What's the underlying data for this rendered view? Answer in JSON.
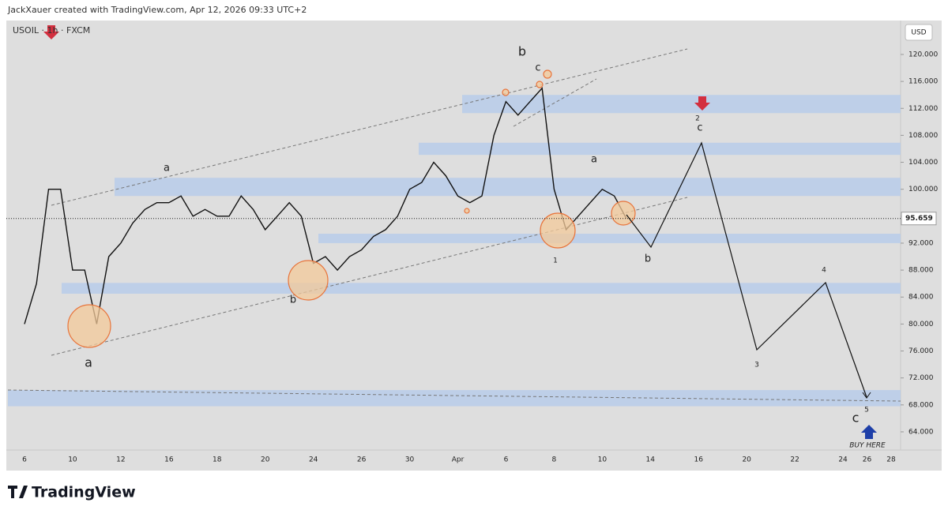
{
  "header": {
    "attribution": "JackXauer created with TradingView.com, Apr 12, 2026 09:33 UTC+2",
    "symbol": "USOIL · 1h · FXCM",
    "currency": "USD"
  },
  "chart_data": {
    "type": "line",
    "color": "#111111",
    "x": [
      "6",
      null,
      null,
      null,
      "10",
      null,
      null,
      null,
      "12",
      null,
      null,
      null,
      "16",
      null,
      null,
      null,
      "18",
      null,
      null,
      null,
      "20",
      null,
      null,
      null,
      "24",
      null,
      null,
      null,
      "26",
      null,
      null,
      null,
      "30",
      null,
      null,
      null,
      "Apr",
      null,
      null,
      null,
      "6",
      null,
      null,
      null,
      "8",
      null,
      null,
      null,
      "10",
      null,
      null,
      null,
      "14",
      null,
      null,
      null,
      "16",
      null,
      null,
      null,
      "20",
      null,
      null,
      null,
      "22",
      null,
      null,
      null,
      "24",
      null,
      "26",
      null,
      "28"
    ],
    "values": [
      80,
      86,
      100,
      100,
      88,
      88,
      80,
      90,
      92,
      95,
      97,
      98,
      98,
      99,
      96,
      97,
      96,
      96,
      99,
      97,
      94,
      96,
      98,
      96,
      89,
      90,
      88,
      90,
      91,
      93,
      94,
      96,
      100,
      101,
      104,
      102,
      99,
      98,
      99,
      108,
      113,
      111,
      113,
      115,
      100,
      94,
      96,
      98,
      100,
      99,
      95.659,
      null,
      null,
      null,
      null,
      null,
      null,
      null,
      null,
      null,
      null,
      null,
      null,
      null,
      null,
      null,
      null,
      null,
      null,
      null,
      null,
      null,
      null
    ],
    "ylim": [
      61.3,
      124.8
    ],
    "yticks": [
      {
        "value": 64,
        "label": "64.000"
      },
      {
        "value": 68,
        "label": "68.000"
      },
      {
        "value": 72,
        "label": "72.000"
      },
      {
        "value": 76,
        "label": "76.000"
      },
      {
        "value": 80,
        "label": "80.000"
      },
      {
        "value": 84,
        "label": "84.000"
      },
      {
        "value": 88,
        "label": "88.000"
      },
      {
        "value": 92,
        "label": "92.000"
      },
      {
        "value": 96,
        "label": "96.000"
      },
      {
        "value": 100,
        "label": "100.000"
      },
      {
        "value": 104,
        "label": "104.000"
      },
      {
        "value": 108,
        "label": "108.000"
      },
      {
        "value": 112,
        "label": "112.000"
      },
      {
        "value": 116,
        "label": "116.000"
      },
      {
        "value": 120,
        "label": "120.000"
      }
    ],
    "last_price": 95.659,
    "zones": [
      {
        "low": 111.3,
        "high": 114.0
      },
      {
        "low": 105.1,
        "high": 106.9
      },
      {
        "low": 99.0,
        "high": 101.7
      },
      {
        "low": 92.0,
        "high": 93.4
      },
      {
        "low": 84.5,
        "high": 86.1
      },
      {
        "low": 67.8,
        "high": 70.2
      }
    ],
    "zone_color": "#b8cdea",
    "annotations": [
      {
        "text": "a",
        "color": "#d32f2f"
      },
      {
        "text": "b",
        "color": "#d32f2f"
      },
      {
        "text": "c",
        "color": "#d32f2f"
      },
      {
        "text": "a",
        "color": "#1e4fa0"
      },
      {
        "text": "b",
        "color": "#1e4fa0"
      },
      {
        "text": "c",
        "color": "#1e4fa0"
      },
      {
        "text": "1",
        "color": "#3f3f9a"
      },
      {
        "text": "a",
        "color": "#2e6b3a"
      },
      {
        "text": "b",
        "color": "#2e6b3a"
      },
      {
        "text": "c",
        "color": "#2e6b3a"
      },
      {
        "text": "2",
        "color": "#3f3f9a"
      },
      {
        "text": "3",
        "color": "#3f3f9a"
      },
      {
        "text": "4",
        "color": "#3f3f9a"
      },
      {
        "text": "5",
        "color": "#3f3f9a"
      },
      {
        "text": "BUY HERE",
        "color": "#1e4fa0"
      }
    ]
  },
  "footer": {
    "brand": "TradingView"
  }
}
